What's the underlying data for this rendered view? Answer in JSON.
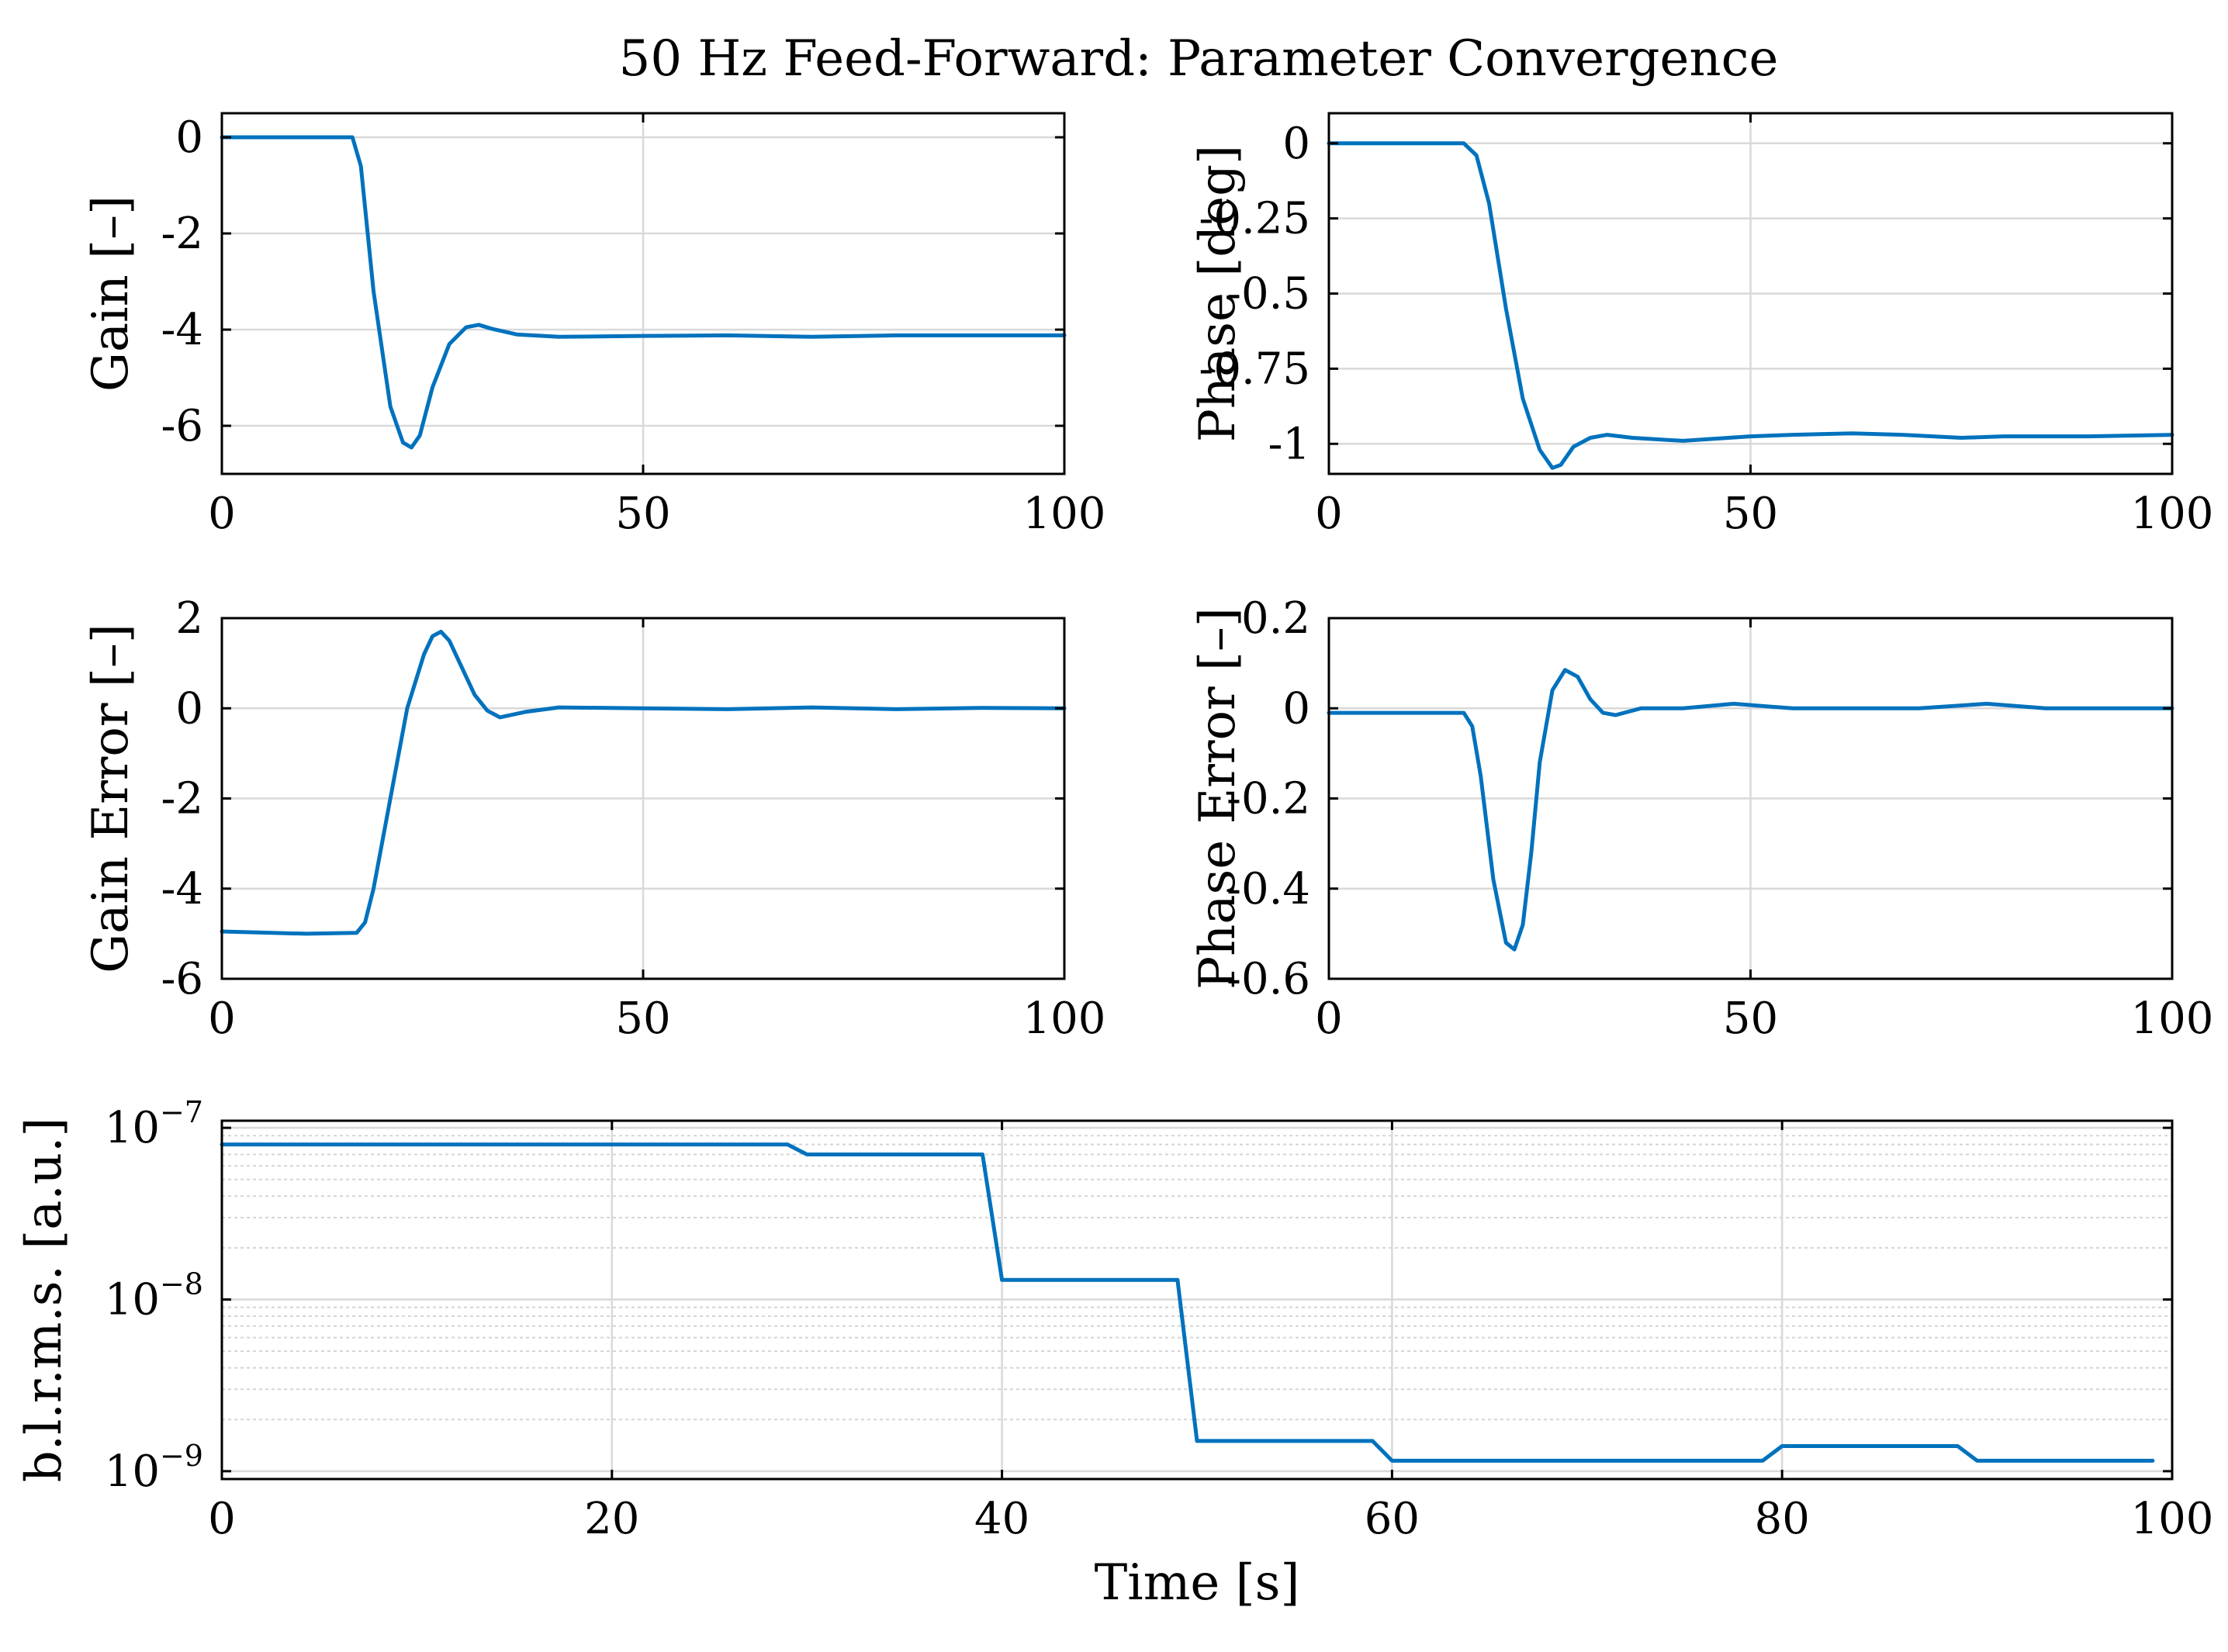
{
  "title": "50 Hz Feed-Forward: Parameter Convergence",
  "series_color": "#0072bd",
  "chart_data": [
    {
      "id": "gain",
      "type": "line",
      "ylabel": "Gain [–]",
      "xlim": [
        0,
        100
      ],
      "ylim": [
        -7,
        0.5
      ],
      "xticks": [
        0,
        50,
        100
      ],
      "xtick_labels": [
        "0",
        "50",
        "100"
      ],
      "yticks": [
        0,
        -2,
        -4,
        -6
      ],
      "ytick_labels": [
        "0",
        "-2",
        "-4",
        "-6"
      ],
      "grid": true,
      "x": [
        0,
        15.5,
        16.5,
        18,
        20,
        21.5,
        22.5,
        23.5,
        25,
        27,
        29,
        30.5,
        32,
        35,
        40,
        50,
        60,
        70,
        80,
        90,
        100
      ],
      "y": [
        0,
        0,
        -0.6,
        -3.2,
        -5.6,
        -6.35,
        -6.45,
        -6.2,
        -5.2,
        -4.3,
        -3.95,
        -3.9,
        -3.98,
        -4.1,
        -4.15,
        -4.13,
        -4.12,
        -4.15,
        -4.12,
        -4.12,
        -4.12
      ]
    },
    {
      "id": "phase",
      "type": "line",
      "ylabel": "Phase [deg]",
      "xlim": [
        0,
        100
      ],
      "ylim": [
        -1.1,
        0.1
      ],
      "xticks": [
        0,
        50,
        100
      ],
      "xtick_labels": [
        "0",
        "50",
        "100"
      ],
      "yticks": [
        0,
        -0.25,
        -0.5,
        -0.75,
        -1
      ],
      "ytick_labels": [
        "0",
        "-0.25",
        "-0.5",
        "-0.75",
        "-1"
      ],
      "grid": true,
      "x": [
        0,
        16,
        17.5,
        19,
        21,
        23,
        25,
        26.5,
        27.5,
        29,
        31,
        33,
        36,
        42,
        50,
        55,
        62,
        68,
        75,
        80,
        90,
        100
      ],
      "y": [
        0,
        0,
        -0.04,
        -0.2,
        -0.55,
        -0.85,
        -1.02,
        -1.08,
        -1.07,
        -1.01,
        -0.98,
        -0.97,
        -0.98,
        -0.99,
        -0.975,
        -0.97,
        -0.965,
        -0.97,
        -0.98,
        -0.975,
        -0.975,
        -0.97
      ]
    },
    {
      "id": "gain-error",
      "type": "line",
      "ylabel": "Gain Error [–]",
      "xlim": [
        0,
        100
      ],
      "ylim": [
        -6,
        2
      ],
      "xticks": [
        0,
        50,
        100
      ],
      "xtick_labels": [
        "0",
        "50",
        "100"
      ],
      "yticks": [
        2,
        0,
        -2,
        -4,
        -6
      ],
      "ytick_labels": [
        "2",
        "0",
        "-2",
        "-4",
        "-6"
      ],
      "grid": true,
      "x": [
        0,
        10,
        16,
        17,
        18,
        20,
        22,
        24,
        25,
        26,
        27,
        28.5,
        30,
        31.5,
        33,
        36,
        40,
        50,
        60,
        70,
        80,
        90,
        100
      ],
      "y": [
        -4.95,
        -5.0,
        -4.98,
        -4.75,
        -4.0,
        -2.0,
        0.0,
        1.2,
        1.6,
        1.7,
        1.5,
        0.9,
        0.3,
        -0.05,
        -0.2,
        -0.08,
        0.02,
        0.0,
        -0.02,
        0.02,
        -0.02,
        0.01,
        0.0
      ]
    },
    {
      "id": "phase-error",
      "type": "line",
      "ylabel": "Phase Error [–]",
      "xlim": [
        0,
        100
      ],
      "ylim": [
        -0.6,
        0.2
      ],
      "xticks": [
        0,
        50,
        100
      ],
      "xtick_labels": [
        "0",
        "50",
        "100"
      ],
      "yticks": [
        0.2,
        0,
        -0.2,
        -0.4,
        -0.6
      ],
      "ytick_labels": [
        "0.2",
        "0",
        "-0.2",
        "-0.4",
        "-0.6"
      ],
      "grid": true,
      "x": [
        0,
        8,
        16,
        17,
        18,
        19.5,
        21,
        22,
        23,
        24,
        25,
        26.5,
        28,
        29.5,
        31,
        32.5,
        34,
        37,
        42,
        48,
        55,
        62,
        70,
        78,
        85,
        92,
        100
      ],
      "y": [
        -0.01,
        -0.01,
        -0.01,
        -0.04,
        -0.15,
        -0.38,
        -0.52,
        -0.535,
        -0.48,
        -0.32,
        -0.12,
        0.04,
        0.085,
        0.07,
        0.02,
        -0.01,
        -0.015,
        0.0,
        0.0,
        0.01,
        0.0,
        0.0,
        0.0,
        0.01,
        0.0,
        0.0,
        0.0
      ]
    },
    {
      "id": "blrms",
      "type": "line",
      "yscale": "log",
      "ylabel": "b.l.r.m.s. [a.u.]",
      "xlabel": "Time [s]",
      "xlim": [
        0,
        100
      ],
      "ylim": [
        9e-10,
        1.1e-07
      ],
      "xticks": [
        0,
        20,
        40,
        60,
        80,
        100
      ],
      "xtick_labels": [
        "0",
        "20",
        "40",
        "60",
        "80",
        "100"
      ],
      "yticks": [
        1e-09,
        1e-08,
        1e-07
      ],
      "ytick_labels": [
        {
          "base": "10",
          "exp": "−9"
        },
        {
          "base": "10",
          "exp": "−8"
        },
        {
          "base": "10",
          "exp": "−7"
        }
      ],
      "grid": true,
      "minor_grid": true,
      "x": [
        0,
        29,
        30,
        39,
        40,
        49,
        50,
        59,
        60,
        70,
        79,
        80,
        89,
        90,
        99
      ],
      "y": [
        8e-08,
        8e-08,
        7e-08,
        7e-08,
        1.3e-08,
        1.3e-08,
        1.5e-09,
        1.5e-09,
        1.15e-09,
        1.15e-09,
        1.15e-09,
        1.4e-09,
        1.4e-09,
        1.15e-09,
        1.15e-09
      ]
    }
  ]
}
